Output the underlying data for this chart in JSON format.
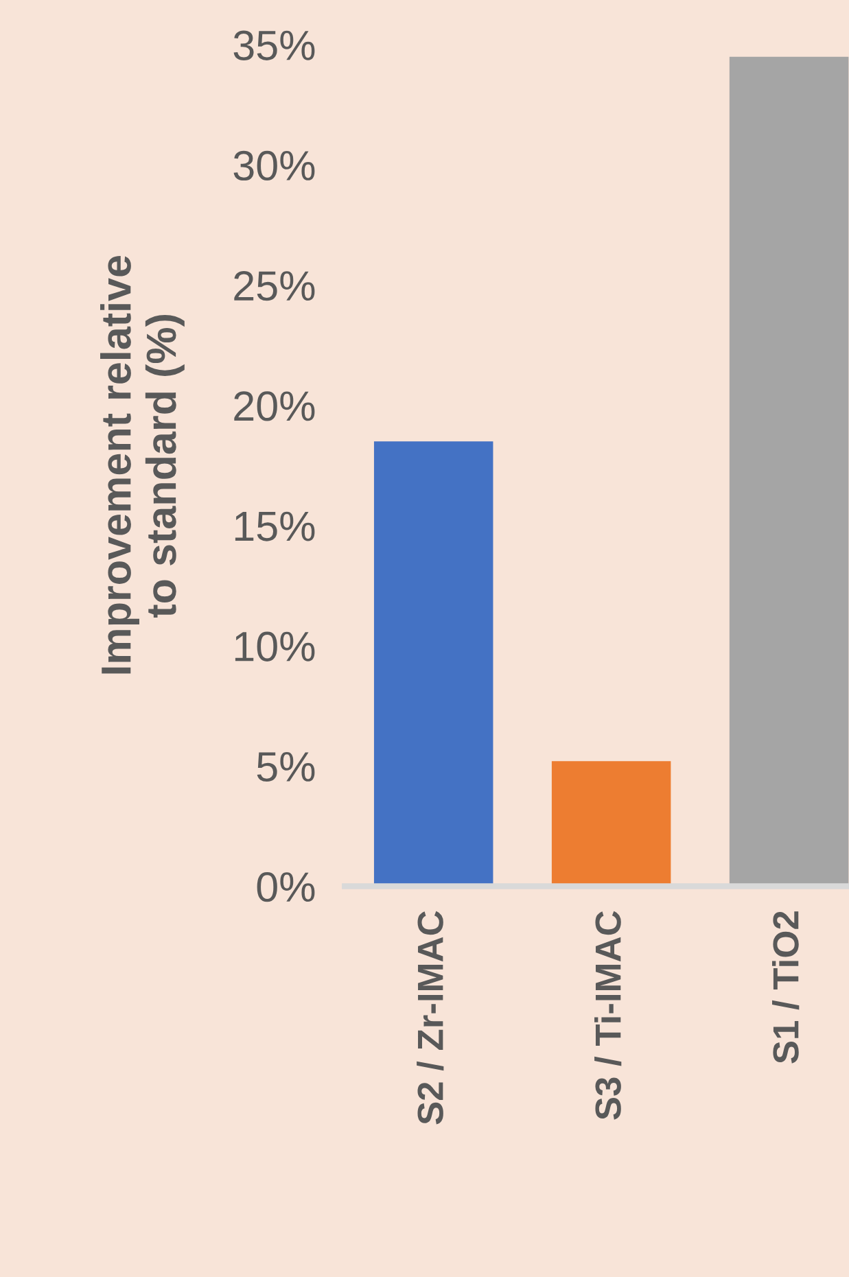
{
  "chart_data": {
    "type": "bar",
    "ylabel": "Improvement relative\nto standard (%)",
    "categories": [
      "S2 / Zr-IMAC",
      "S3 / Ti-IMAC",
      "S1 / TiO2"
    ],
    "values": [
      18.5,
      5.2,
      34.5
    ],
    "colors": [
      "#4472c4",
      "#ed7d31",
      "#a5a5a5"
    ],
    "ylim": [
      0,
      35
    ],
    "yticks": [
      {
        "value": 0,
        "label": "0%"
      },
      {
        "value": 5,
        "label": "5%"
      },
      {
        "value": 10,
        "label": "10%"
      },
      {
        "value": 15,
        "label": "15%"
      },
      {
        "value": 20,
        "label": "20%"
      },
      {
        "value": 25,
        "label": "25%"
      },
      {
        "value": 30,
        "label": "30%"
      },
      {
        "value": 35,
        "label": "35%"
      }
    ],
    "grid": false,
    "legend": false
  }
}
